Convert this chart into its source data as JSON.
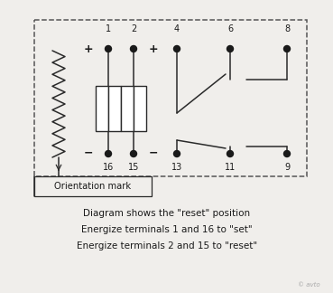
{
  "bg_color": "#f0eeeb",
  "border_color": "#555555",
  "line_color": "#2a2a2a",
  "dot_color": "#1a1a1a",
  "text_color": "#1a1a1a",
  "fig_width": 3.69,
  "fig_height": 3.24,
  "dpi": 100,
  "caption_lines": [
    "Diagram shows the \"reset\" position",
    "Energize terminals 1 and 16 to \"set\"",
    "Energize terminals 2 and 15 to \"reset\""
  ],
  "orientation_mark_text": "Orientation mark"
}
